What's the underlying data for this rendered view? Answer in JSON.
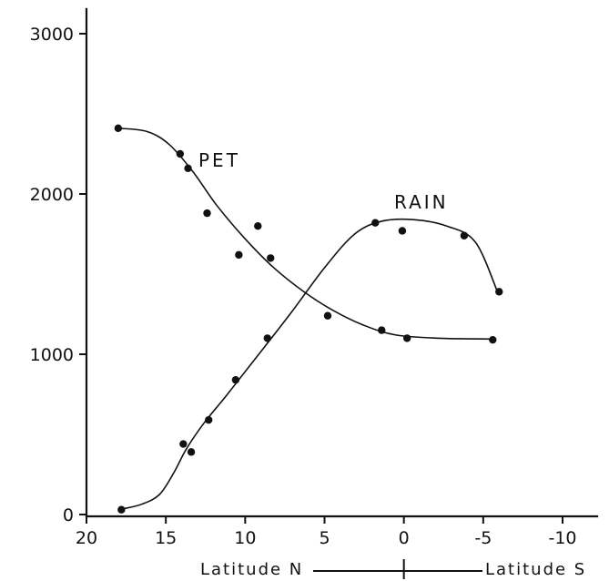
{
  "chart_data": {
    "type": "scatter",
    "title": "",
    "xlabel": "",
    "ylabel": "",
    "xlim": [
      20,
      -12
    ],
    "ylim": [
      0,
      3000
    ],
    "x_tick_values": [
      20,
      15,
      10,
      5,
      0,
      -5,
      -10
    ],
    "x_tick_labels": [
      "20",
      "15",
      "10",
      "5",
      "0",
      "-5",
      "-10"
    ],
    "y_tick_values": [
      3000,
      2000,
      1000,
      0
    ],
    "y_tick_labels": [
      "3000",
      "2000",
      "1000",
      "0"
    ],
    "bottom_labels": {
      "north": "Latitude N",
      "south": "Latitude S"
    },
    "series": [
      {
        "name": "PET",
        "points": [
          [
            18.0,
            2410
          ],
          [
            14.1,
            2250
          ],
          [
            13.6,
            2160
          ],
          [
            12.4,
            1880
          ],
          [
            10.4,
            1620
          ],
          [
            9.2,
            1800
          ],
          [
            8.4,
            1600
          ],
          [
            4.8,
            1240
          ],
          [
            1.4,
            1150
          ],
          [
            -0.2,
            1100
          ],
          [
            -5.6,
            1090
          ]
        ],
        "curve": [
          [
            18.0,
            2410
          ],
          [
            16.2,
            2390
          ],
          [
            14.8,
            2310
          ],
          [
            13.3,
            2140
          ],
          [
            11.8,
            1930
          ],
          [
            10.0,
            1720
          ],
          [
            8.2,
            1540
          ],
          [
            6.3,
            1390
          ],
          [
            4.4,
            1270
          ],
          [
            2.5,
            1180
          ],
          [
            0.5,
            1120
          ],
          [
            -2.3,
            1100
          ],
          [
            -5.6,
            1095
          ]
        ]
      },
      {
        "name": "RAIN",
        "points": [
          [
            17.8,
            30
          ],
          [
            13.9,
            440
          ],
          [
            13.4,
            390
          ],
          [
            12.3,
            590
          ],
          [
            10.6,
            840
          ],
          [
            8.6,
            1100
          ],
          [
            1.8,
            1820
          ],
          [
            0.1,
            1770
          ],
          [
            -3.8,
            1740
          ],
          [
            -6.0,
            1390
          ]
        ],
        "curve": [
          [
            17.7,
            35
          ],
          [
            16.5,
            65
          ],
          [
            15.4,
            125
          ],
          [
            14.5,
            260
          ],
          [
            13.7,
            410
          ],
          [
            12.6,
            570
          ],
          [
            11.2,
            740
          ],
          [
            9.3,
            980
          ],
          [
            7.1,
            1260
          ],
          [
            5.0,
            1540
          ],
          [
            3.1,
            1750
          ],
          [
            1.4,
            1830
          ],
          [
            -0.6,
            1840
          ],
          [
            -2.7,
            1800
          ],
          [
            -4.5,
            1700
          ],
          [
            -5.9,
            1390
          ]
        ]
      }
    ]
  }
}
